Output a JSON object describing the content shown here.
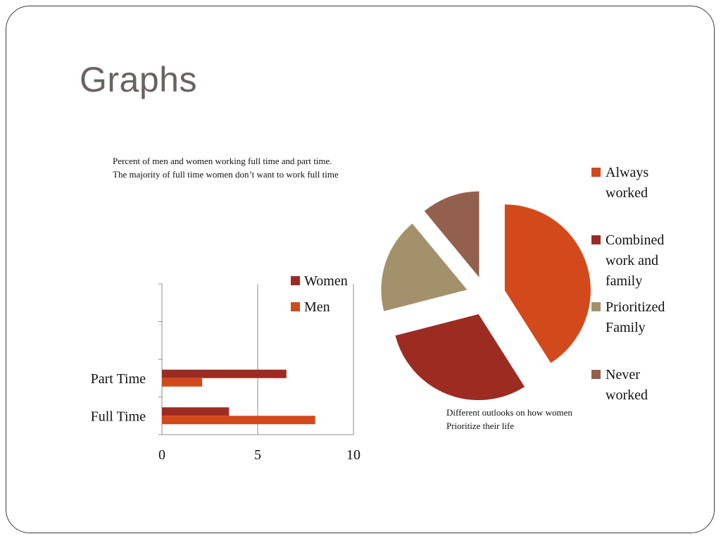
{
  "title": "Graphs",
  "bar_caption": {
    "line1": "Percent of men and women working full time and part time.",
    "line2": "The majority of full time women don’t want to work full time"
  },
  "pie_caption": {
    "line1": "Different outlooks on how women",
    "line2": "Prioritize their life"
  },
  "chart_data": [
    {
      "type": "bar",
      "orientation": "horizontal",
      "categories": [
        "Full Time",
        "Part Time"
      ],
      "series": [
        {
          "name": "Women",
          "color": "#9c2b22",
          "values": [
            3.5,
            6.5
          ]
        },
        {
          "name": "Men",
          "color": "#d24a1c",
          "values": [
            8,
            2.1
          ]
        }
      ],
      "xlim": [
        0,
        10
      ],
      "xticks": [
        "0",
        "5",
        "10"
      ],
      "grid": true,
      "legend": "top-right"
    },
    {
      "type": "pie",
      "exploded": true,
      "legend": "right",
      "slices": [
        {
          "label": "Always worked",
          "value": 41,
          "color": "#d24a1c"
        },
        {
          "label": "Combined work and family",
          "value": 30,
          "color": "#9c2b22"
        },
        {
          "label": "Prioritized Family",
          "value": 18,
          "color": "#a3916b"
        },
        {
          "label": "Never worked",
          "value": 11,
          "color": "#94604e"
        }
      ]
    }
  ]
}
